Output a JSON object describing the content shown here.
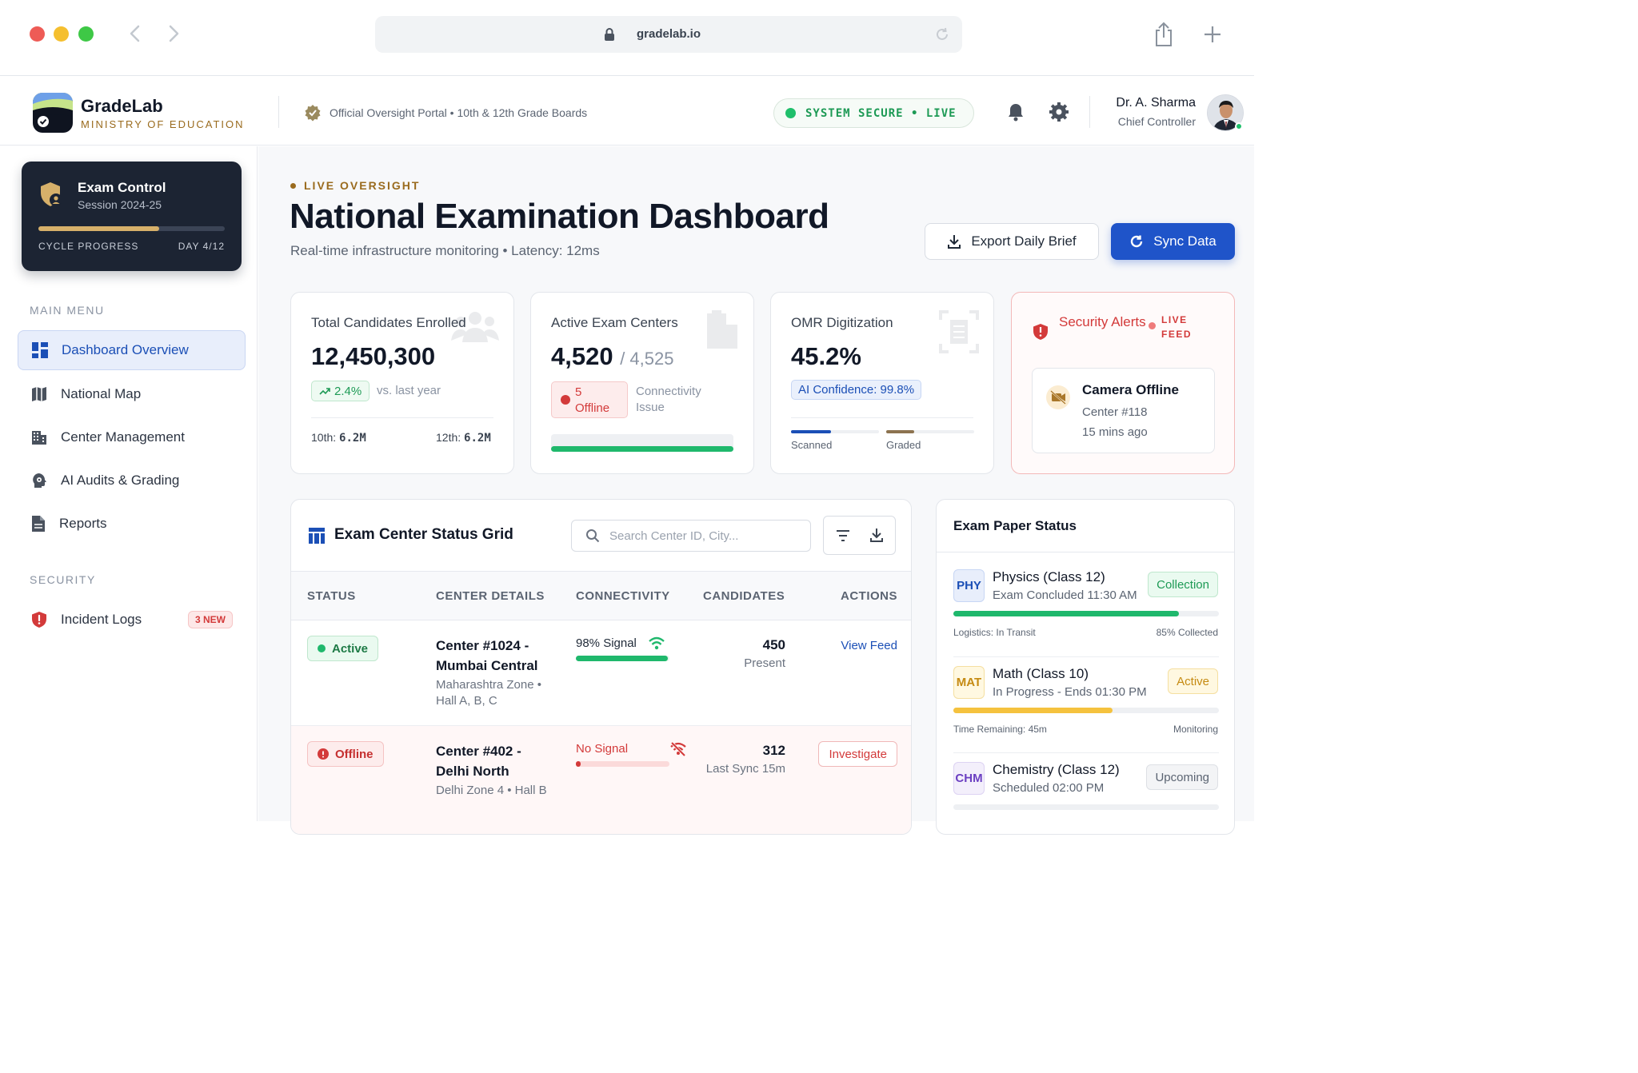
{
  "browser": {
    "url": "gradelab.io"
  },
  "header": {
    "brand_name": "GradeLab",
    "brand_sub": "MINISTRY OF EDUCATION",
    "portal_text": "Official Oversight Portal • 10th & 12th Grade Boards",
    "status_text": "SYSTEM SECURE • LIVE",
    "user_name": "Dr. A. Sharma",
    "user_role": "Chief Controller"
  },
  "sidebar": {
    "exam_card": {
      "title": "Exam Control",
      "session": "Session 2024-25",
      "cycle_label": "CYCLE PROGRESS",
      "cycle_day": "DAY 4/12",
      "progress": 0.65
    },
    "main_menu_heading": "MAIN MENU",
    "items": [
      {
        "label": "Dashboard Overview",
        "icon": "dashboard-icon",
        "active": true
      },
      {
        "label": "National Map",
        "icon": "map-icon"
      },
      {
        "label": "Center Management",
        "icon": "building-icon"
      },
      {
        "label": "AI Audits & Grading",
        "icon": "ai-head-icon"
      },
      {
        "label": "Reports",
        "icon": "document-icon"
      }
    ],
    "security_heading": "SECURITY",
    "incident": {
      "label": "Incident Logs",
      "badge": "3 NEW"
    }
  },
  "main": {
    "eyebrow": "LIVE OVERSIGHT",
    "title": "National Examination Dashboard",
    "subtitle": "Real-time infrastructure monitoring • Latency: 12ms",
    "export_label": "Export Daily Brief",
    "sync_label": "Sync Data"
  },
  "kpis": {
    "candidates": {
      "label": "Total Candidates Enrolled",
      "value": "12,450,300",
      "trend": "2.4%",
      "vs": "vs. last year",
      "tenth_label": "10th:",
      "tenth_value": "6.2M",
      "twelfth_label": "12th:",
      "twelfth_value": "6.2M"
    },
    "centers": {
      "label": "Active Exam Centers",
      "value": "4,520",
      "total": "/ 4,525",
      "offline_count": "5",
      "offline_label": "Offline",
      "issue_line1": "Connectivity",
      "issue_line2": "Issue",
      "active_fraction": 0.999
    },
    "omr": {
      "label": "OMR Digitization",
      "value": "45.2%",
      "confidence": "AI Confidence: 99.8%",
      "scanned_label": "Scanned",
      "graded_label": "Graded",
      "scanned_fraction": 0.45,
      "graded_fraction": 0.32
    },
    "alerts": {
      "title": "Security Alerts",
      "live_line1": "LIVE",
      "live_line2": "FEED",
      "alert_title": "Camera Offline",
      "alert_center": "Center #118",
      "alert_time": "15 mins ago"
    }
  },
  "grid": {
    "title": "Exam Center Status Grid",
    "search_placeholder": "Search Center ID, City...",
    "columns": [
      "STATUS",
      "CENTER DETAILS",
      "CONNECTIVITY",
      "CANDIDATES",
      "ACTIONS"
    ],
    "rows": [
      {
        "status": "Active",
        "name": "Center #1024 - Mumbai Central",
        "location": "Maharashtra Zone • Hall A, B, C",
        "signal": "98% Signal",
        "signal_level": 0.98,
        "candidates": "450",
        "candidates_sub": "Present",
        "action": "View Feed"
      },
      {
        "status": "Offline",
        "name": "Center #402 - Delhi North",
        "location": "Delhi Zone 4 • Hall B",
        "signal": "No Signal",
        "signal_level": 0.05,
        "candidates": "312",
        "candidates_sub": "Last Sync 15m",
        "action": "Investigate"
      }
    ]
  },
  "papers": {
    "title": "Exam Paper Status",
    "items": [
      {
        "code": "PHY",
        "name": "Physics (Class 12)",
        "sub": "Exam Concluded 11:30 AM",
        "tag": "Collection",
        "progress": 0.85,
        "foot_left": "Logistics: In Transit",
        "foot_right": "85% Collected",
        "color": "#1fb86c"
      },
      {
        "code": "MAT",
        "name": "Math (Class 10)",
        "sub": "In Progress - Ends 01:30 PM",
        "tag": "Active",
        "progress": 0.6,
        "foot_left": "Time Remaining: 45m",
        "foot_right": "Monitoring",
        "color": "#f5c23e"
      },
      {
        "code": "CHM",
        "name": "Chemistry (Class 12)",
        "sub": "Scheduled 02:00 PM",
        "tag": "Upcoming",
        "progress": 0,
        "color": "#c7ccd4"
      }
    ]
  },
  "colors": {
    "primary": "#1f54c9",
    "success": "#1fb86c",
    "danger": "#d33a3a",
    "gold": "#9a6b1e",
    "dark_card": "#1c2433"
  }
}
